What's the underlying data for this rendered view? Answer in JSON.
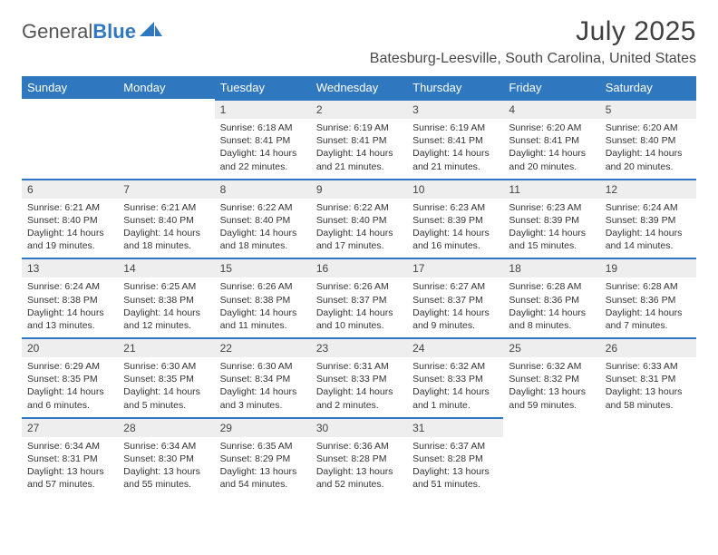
{
  "brand": {
    "part1": "General",
    "part2": "Blue"
  },
  "title": "July 2025",
  "location": "Batesburg-Leesville, South Carolina, United States",
  "colors": {
    "accent": "#2f78bf",
    "header_text": "#ffffff",
    "daynum_bg": "#eeeeee",
    "body_text": "#333333",
    "page_bg": "#ffffff"
  },
  "weekdays": [
    "Sunday",
    "Monday",
    "Tuesday",
    "Wednesday",
    "Thursday",
    "Friday",
    "Saturday"
  ],
  "weeks": [
    [
      {
        "n": "",
        "sr": "",
        "ss": "",
        "dl": "",
        "empty": true
      },
      {
        "n": "",
        "sr": "",
        "ss": "",
        "dl": "",
        "empty": true
      },
      {
        "n": "1",
        "sr": "Sunrise: 6:18 AM",
        "ss": "Sunset: 8:41 PM",
        "dl": "Daylight: 14 hours and 22 minutes."
      },
      {
        "n": "2",
        "sr": "Sunrise: 6:19 AM",
        "ss": "Sunset: 8:41 PM",
        "dl": "Daylight: 14 hours and 21 minutes."
      },
      {
        "n": "3",
        "sr": "Sunrise: 6:19 AM",
        "ss": "Sunset: 8:41 PM",
        "dl": "Daylight: 14 hours and 21 minutes."
      },
      {
        "n": "4",
        "sr": "Sunrise: 6:20 AM",
        "ss": "Sunset: 8:41 PM",
        "dl": "Daylight: 14 hours and 20 minutes."
      },
      {
        "n": "5",
        "sr": "Sunrise: 6:20 AM",
        "ss": "Sunset: 8:40 PM",
        "dl": "Daylight: 14 hours and 20 minutes."
      }
    ],
    [
      {
        "n": "6",
        "sr": "Sunrise: 6:21 AM",
        "ss": "Sunset: 8:40 PM",
        "dl": "Daylight: 14 hours and 19 minutes."
      },
      {
        "n": "7",
        "sr": "Sunrise: 6:21 AM",
        "ss": "Sunset: 8:40 PM",
        "dl": "Daylight: 14 hours and 18 minutes."
      },
      {
        "n": "8",
        "sr": "Sunrise: 6:22 AM",
        "ss": "Sunset: 8:40 PM",
        "dl": "Daylight: 14 hours and 18 minutes."
      },
      {
        "n": "9",
        "sr": "Sunrise: 6:22 AM",
        "ss": "Sunset: 8:40 PM",
        "dl": "Daylight: 14 hours and 17 minutes."
      },
      {
        "n": "10",
        "sr": "Sunrise: 6:23 AM",
        "ss": "Sunset: 8:39 PM",
        "dl": "Daylight: 14 hours and 16 minutes."
      },
      {
        "n": "11",
        "sr": "Sunrise: 6:23 AM",
        "ss": "Sunset: 8:39 PM",
        "dl": "Daylight: 14 hours and 15 minutes."
      },
      {
        "n": "12",
        "sr": "Sunrise: 6:24 AM",
        "ss": "Sunset: 8:39 PM",
        "dl": "Daylight: 14 hours and 14 minutes."
      }
    ],
    [
      {
        "n": "13",
        "sr": "Sunrise: 6:24 AM",
        "ss": "Sunset: 8:38 PM",
        "dl": "Daylight: 14 hours and 13 minutes."
      },
      {
        "n": "14",
        "sr": "Sunrise: 6:25 AM",
        "ss": "Sunset: 8:38 PM",
        "dl": "Daylight: 14 hours and 12 minutes."
      },
      {
        "n": "15",
        "sr": "Sunrise: 6:26 AM",
        "ss": "Sunset: 8:38 PM",
        "dl": "Daylight: 14 hours and 11 minutes."
      },
      {
        "n": "16",
        "sr": "Sunrise: 6:26 AM",
        "ss": "Sunset: 8:37 PM",
        "dl": "Daylight: 14 hours and 10 minutes."
      },
      {
        "n": "17",
        "sr": "Sunrise: 6:27 AM",
        "ss": "Sunset: 8:37 PM",
        "dl": "Daylight: 14 hours and 9 minutes."
      },
      {
        "n": "18",
        "sr": "Sunrise: 6:28 AM",
        "ss": "Sunset: 8:36 PM",
        "dl": "Daylight: 14 hours and 8 minutes."
      },
      {
        "n": "19",
        "sr": "Sunrise: 6:28 AM",
        "ss": "Sunset: 8:36 PM",
        "dl": "Daylight: 14 hours and 7 minutes."
      }
    ],
    [
      {
        "n": "20",
        "sr": "Sunrise: 6:29 AM",
        "ss": "Sunset: 8:35 PM",
        "dl": "Daylight: 14 hours and 6 minutes."
      },
      {
        "n": "21",
        "sr": "Sunrise: 6:30 AM",
        "ss": "Sunset: 8:35 PM",
        "dl": "Daylight: 14 hours and 5 minutes."
      },
      {
        "n": "22",
        "sr": "Sunrise: 6:30 AM",
        "ss": "Sunset: 8:34 PM",
        "dl": "Daylight: 14 hours and 3 minutes."
      },
      {
        "n": "23",
        "sr": "Sunrise: 6:31 AM",
        "ss": "Sunset: 8:33 PM",
        "dl": "Daylight: 14 hours and 2 minutes."
      },
      {
        "n": "24",
        "sr": "Sunrise: 6:32 AM",
        "ss": "Sunset: 8:33 PM",
        "dl": "Daylight: 14 hours and 1 minute."
      },
      {
        "n": "25",
        "sr": "Sunrise: 6:32 AM",
        "ss": "Sunset: 8:32 PM",
        "dl": "Daylight: 13 hours and 59 minutes."
      },
      {
        "n": "26",
        "sr": "Sunrise: 6:33 AM",
        "ss": "Sunset: 8:31 PM",
        "dl": "Daylight: 13 hours and 58 minutes."
      }
    ],
    [
      {
        "n": "27",
        "sr": "Sunrise: 6:34 AM",
        "ss": "Sunset: 8:31 PM",
        "dl": "Daylight: 13 hours and 57 minutes."
      },
      {
        "n": "28",
        "sr": "Sunrise: 6:34 AM",
        "ss": "Sunset: 8:30 PM",
        "dl": "Daylight: 13 hours and 55 minutes."
      },
      {
        "n": "29",
        "sr": "Sunrise: 6:35 AM",
        "ss": "Sunset: 8:29 PM",
        "dl": "Daylight: 13 hours and 54 minutes."
      },
      {
        "n": "30",
        "sr": "Sunrise: 6:36 AM",
        "ss": "Sunset: 8:28 PM",
        "dl": "Daylight: 13 hours and 52 minutes."
      },
      {
        "n": "31",
        "sr": "Sunrise: 6:37 AM",
        "ss": "Sunset: 8:28 PM",
        "dl": "Daylight: 13 hours and 51 minutes."
      },
      {
        "n": "",
        "sr": "",
        "ss": "",
        "dl": "",
        "empty": true
      },
      {
        "n": "",
        "sr": "",
        "ss": "",
        "dl": "",
        "empty": true
      }
    ]
  ]
}
